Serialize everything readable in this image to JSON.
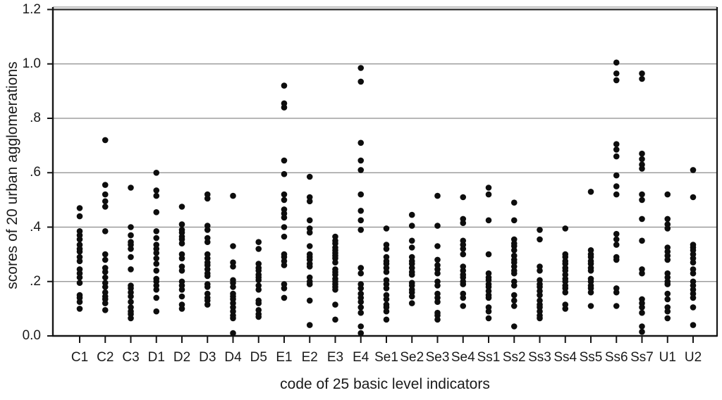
{
  "figure": {
    "background": "#ffffff",
    "text_color": "#1a1a1a",
    "frame_color": "#161616",
    "gridline_color": "#8c8c8c"
  },
  "chart_data": {
    "type": "scatter",
    "subtype": "strip-plot",
    "title": "",
    "xlabel": "code of 25 basic level indicators",
    "ylabel": "scores of 20 urban agglomerations",
    "ylim": [
      0.0,
      1.207
    ],
    "grid": true,
    "legend": false,
    "point_color": "#0d0d0d",
    "yticks": [
      {
        "label": "0.0",
        "value": 0.0
      },
      {
        "label": ".2",
        "value": 0.2
      },
      {
        "label": ".4",
        "value": 0.4
      },
      {
        "label": ".6",
        "value": 0.6
      },
      {
        "label": ".8",
        "value": 0.8
      },
      {
        "label": "1.0",
        "value": 1.0
      },
      {
        "label": "1.2",
        "value": 1.2
      }
    ],
    "categories": [
      "C1",
      "C2",
      "C3",
      "D1",
      "D2",
      "D3",
      "D4",
      "D5",
      "E1",
      "E2",
      "E3",
      "E4",
      "Se1",
      "Se2",
      "Se3",
      "Se4",
      "Ss1",
      "Ss2",
      "Ss3",
      "Ss4",
      "Ss5",
      "Ss6",
      "Ss7",
      "U1",
      "U2"
    ],
    "series": [
      {
        "name": "C1",
        "values": [
          0.47,
          0.44,
          0.385,
          0.37,
          0.355,
          0.335,
          0.32,
          0.31,
          0.29,
          0.275,
          0.245,
          0.23,
          0.215,
          0.195,
          0.15,
          0.14,
          0.125,
          0.1
        ]
      },
      {
        "name": "C2",
        "values": [
          0.72,
          0.555,
          0.52,
          0.495,
          0.475,
          0.385,
          0.3,
          0.28,
          0.25,
          0.235,
          0.215,
          0.195,
          0.18,
          0.16,
          0.145,
          0.135,
          0.12,
          0.095
        ]
      },
      {
        "name": "C3",
        "values": [
          0.545,
          0.4,
          0.37,
          0.345,
          0.335,
          0.32,
          0.29,
          0.245,
          0.185,
          0.175,
          0.16,
          0.145,
          0.125,
          0.105,
          0.09,
          0.08,
          0.065
        ]
      },
      {
        "name": "D1",
        "values": [
          0.6,
          0.535,
          0.515,
          0.455,
          0.385,
          0.36,
          0.335,
          0.32,
          0.305,
          0.285,
          0.265,
          0.24,
          0.21,
          0.2,
          0.185,
          0.17,
          0.14,
          0.09
        ]
      },
      {
        "name": "D2",
        "values": [
          0.475,
          0.41,
          0.39,
          0.38,
          0.365,
          0.355,
          0.34,
          0.3,
          0.285,
          0.255,
          0.24,
          0.2,
          0.185,
          0.17,
          0.145,
          0.115,
          0.1
        ]
      },
      {
        "name": "D3",
        "values": [
          0.52,
          0.505,
          0.405,
          0.39,
          0.36,
          0.345,
          0.3,
          0.285,
          0.27,
          0.26,
          0.245,
          0.23,
          0.22,
          0.19,
          0.18,
          0.155,
          0.14,
          0.13,
          0.115
        ]
      },
      {
        "name": "D4",
        "values": [
          0.515,
          0.33,
          0.27,
          0.255,
          0.205,
          0.195,
          0.18,
          0.155,
          0.145,
          0.135,
          0.12,
          0.105,
          0.09,
          0.075,
          0.065,
          0.01
        ]
      },
      {
        "name": "D5",
        "values": [
          0.345,
          0.32,
          0.265,
          0.25,
          0.24,
          0.225,
          0.215,
          0.205,
          0.185,
          0.17,
          0.13,
          0.12,
          0.095,
          0.08,
          0.07
        ]
      },
      {
        "name": "E1",
        "values": [
          0.92,
          0.855,
          0.84,
          0.645,
          0.595,
          0.52,
          0.5,
          0.465,
          0.45,
          0.435,
          0.4,
          0.365,
          0.3,
          0.29,
          0.275,
          0.26,
          0.19,
          0.175,
          0.14
        ]
      },
      {
        "name": "E2",
        "values": [
          0.585,
          0.51,
          0.495,
          0.425,
          0.395,
          0.38,
          0.33,
          0.3,
          0.29,
          0.28,
          0.265,
          0.255,
          0.215,
          0.2,
          0.19,
          0.13,
          0.04
        ]
      },
      {
        "name": "E3",
        "values": [
          0.365,
          0.35,
          0.34,
          0.325,
          0.315,
          0.305,
          0.295,
          0.285,
          0.27,
          0.245,
          0.235,
          0.225,
          0.21,
          0.2,
          0.19,
          0.18,
          0.17,
          0.115,
          0.06
        ]
      },
      {
        "name": "E4",
        "values": [
          0.985,
          0.935,
          0.71,
          0.645,
          0.61,
          0.52,
          0.46,
          0.425,
          0.39,
          0.25,
          0.23,
          0.19,
          0.175,
          0.155,
          0.14,
          0.125,
          0.105,
          0.085,
          0.035,
          0.01
        ]
      },
      {
        "name": "Se1",
        "values": [
          0.395,
          0.335,
          0.32,
          0.29,
          0.275,
          0.265,
          0.25,
          0.235,
          0.205,
          0.19,
          0.175,
          0.15,
          0.135,
          0.115,
          0.105,
          0.09,
          0.06
        ]
      },
      {
        "name": "Se2",
        "values": [
          0.445,
          0.405,
          0.35,
          0.325,
          0.29,
          0.275,
          0.265,
          0.25,
          0.235,
          0.225,
          0.195,
          0.185,
          0.17,
          0.16,
          0.145,
          0.12
        ]
      },
      {
        "name": "Se3",
        "values": [
          0.515,
          0.405,
          0.33,
          0.28,
          0.26,
          0.245,
          0.23,
          0.2,
          0.185,
          0.155,
          0.14,
          0.125,
          0.085,
          0.075,
          0.06
        ]
      },
      {
        "name": "Se4",
        "values": [
          0.51,
          0.43,
          0.415,
          0.35,
          0.335,
          0.32,
          0.3,
          0.255,
          0.24,
          0.225,
          0.215,
          0.2,
          0.19,
          0.155,
          0.14,
          0.11
        ]
      },
      {
        "name": "Ss1",
        "values": [
          0.545,
          0.52,
          0.425,
          0.3,
          0.23,
          0.215,
          0.205,
          0.19,
          0.18,
          0.165,
          0.15,
          0.14,
          0.105,
          0.09,
          0.065
        ]
      },
      {
        "name": "Ss2",
        "values": [
          0.49,
          0.425,
          0.355,
          0.34,
          0.33,
          0.315,
          0.295,
          0.28,
          0.27,
          0.255,
          0.24,
          0.23,
          0.2,
          0.185,
          0.15,
          0.13,
          0.11,
          0.035
        ]
      },
      {
        "name": "Ss3",
        "values": [
          0.39,
          0.355,
          0.255,
          0.24,
          0.205,
          0.19,
          0.18,
          0.165,
          0.15,
          0.13,
          0.115,
          0.105,
          0.09,
          0.075,
          0.065
        ]
      },
      {
        "name": "Ss4",
        "values": [
          0.395,
          0.3,
          0.29,
          0.275,
          0.265,
          0.25,
          0.24,
          0.225,
          0.21,
          0.2,
          0.185,
          0.175,
          0.16,
          0.115,
          0.1
        ]
      },
      {
        "name": "Ss5",
        "values": [
          0.53,
          0.315,
          0.3,
          0.29,
          0.275,
          0.265,
          0.25,
          0.24,
          0.21,
          0.2,
          0.185,
          0.175,
          0.16,
          0.11
        ]
      },
      {
        "name": "Ss6",
        "values": [
          1.005,
          0.965,
          0.94,
          0.705,
          0.685,
          0.66,
          0.59,
          0.55,
          0.52,
          0.375,
          0.355,
          0.335,
          0.29,
          0.28,
          0.175,
          0.16,
          0.11
        ]
      },
      {
        "name": "Ss7",
        "values": [
          0.965,
          0.945,
          0.67,
          0.65,
          0.63,
          0.615,
          0.52,
          0.5,
          0.43,
          0.35,
          0.245,
          0.23,
          0.135,
          0.12,
          0.105,
          0.085,
          0.035,
          0.015
        ]
      },
      {
        "name": "U1",
        "values": [
          0.52,
          0.43,
          0.41,
          0.395,
          0.325,
          0.31,
          0.295,
          0.28,
          0.23,
          0.215,
          0.2,
          0.19,
          0.155,
          0.135,
          0.105,
          0.09,
          0.065
        ]
      },
      {
        "name": "U2",
        "values": [
          0.61,
          0.51,
          0.335,
          0.325,
          0.315,
          0.3,
          0.285,
          0.27,
          0.245,
          0.23,
          0.2,
          0.185,
          0.17,
          0.155,
          0.14,
          0.105,
          0.04
        ]
      }
    ]
  }
}
